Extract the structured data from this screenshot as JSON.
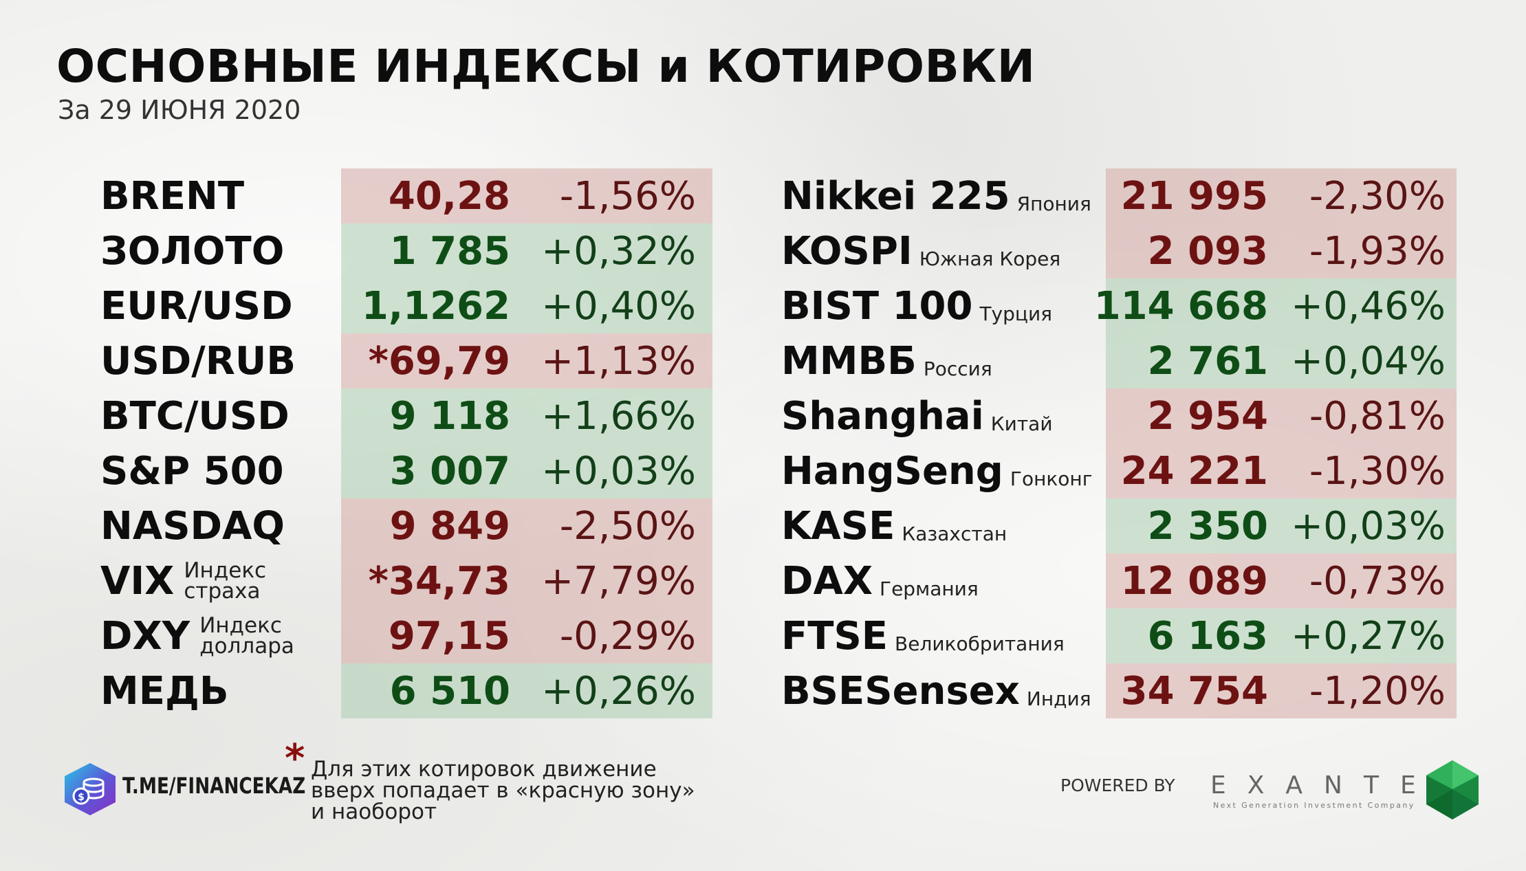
{
  "header": {
    "title": "ОСНОВНЫЕ ИНДЕКСЫ и КОТИРОВКИ",
    "subtitle": "За 29 ИЮНЯ 2020"
  },
  "colors": {
    "negative_text": "#6d1212",
    "positive_text": "#0f4d16",
    "negative_bg": "#dbb3ad",
    "positive_bg": "#b5d3b8"
  },
  "left_quotes": [
    {
      "name": "BRENT",
      "sub": [],
      "value": "40,28",
      "change": "-1,56%",
      "tone": "neg"
    },
    {
      "name": "ЗОЛОТО",
      "sub": [],
      "value": "1 785",
      "change": "+0,32%",
      "tone": "pos"
    },
    {
      "name": "EUR/USD",
      "sub": [],
      "value": "1,1262",
      "change": "+0,40%",
      "tone": "pos"
    },
    {
      "name": "USD/RUB",
      "sub": [],
      "value": "*69,79",
      "change": "+1,13%",
      "tone": "neg"
    },
    {
      "name": "BTC/USD",
      "sub": [],
      "value": "9 118",
      "change": "+1,66%",
      "tone": "pos"
    },
    {
      "name": "S&P 500",
      "sub": [],
      "value": "3 007",
      "change": "+0,03%",
      "tone": "pos"
    },
    {
      "name": "NASDAQ",
      "sub": [],
      "value": "9 849",
      "change": "-2,50%",
      "tone": "neg"
    },
    {
      "name": "VIX",
      "sub": [
        "Индекс",
        "страха"
      ],
      "value": "*34,73",
      "change": "+7,79%",
      "tone": "neg"
    },
    {
      "name": "DXY",
      "sub": [
        "Индекс",
        "доллара"
      ],
      "value": "97,15",
      "change": "-0,29%",
      "tone": "neg"
    },
    {
      "name": "МЕДЬ",
      "sub": [],
      "value": "6 510",
      "change": "+0,26%",
      "tone": "pos"
    }
  ],
  "right_quotes": [
    {
      "name": "Nikkei 225",
      "country": "Япония",
      "value": "21 995",
      "change": "-2,30%",
      "tone": "neg"
    },
    {
      "name": "KOSPI",
      "country": "Южная Корея",
      "value": "2 093",
      "change": "-1,93%",
      "tone": "neg"
    },
    {
      "name": "BIST 100",
      "country": "Турция",
      "value": "114 668",
      "change": "+0,46%",
      "tone": "pos"
    },
    {
      "name": "ММВБ",
      "country": "Россия",
      "value": "2 761",
      "change": "+0,04%",
      "tone": "pos"
    },
    {
      "name": "Shanghai",
      "country": "Китай",
      "value": "2 954",
      "change": "-0,81%",
      "tone": "neg"
    },
    {
      "name": "HangSeng",
      "country": "Гонконг",
      "value": "24 221",
      "change": "-1,30%",
      "tone": "neg"
    },
    {
      "name": "KASE",
      "country": "Казахстан",
      "value": "2 350",
      "change": "+0,03%",
      "tone": "pos"
    },
    {
      "name": "DAX",
      "country": "Германия",
      "value": "12 089",
      "change": "-0,73%",
      "tone": "neg"
    },
    {
      "name": "FTSE",
      "country": "Великобритания",
      "value": "6 163",
      "change": "+0,27%",
      "tone": "pos"
    },
    {
      "name": "BSESensex",
      "country": "Индия",
      "value": "34 754",
      "change": "-1,20%",
      "tone": "neg"
    }
  ],
  "footnote": {
    "marker": "*",
    "lines": [
      "Для этих котировок движение",
      "вверх попадает в «красную зону»",
      "и наоборот"
    ]
  },
  "brand": {
    "telegram": "T.ME/FINANCEKAZ",
    "logo_icon": "hexagon-coins-icon",
    "powered_by": "POWERED BY",
    "sponsor": "EXANTE",
    "sponsor_tagline": "Next Generation Investment Company",
    "sponsor_icon": "green-gem-icon"
  }
}
